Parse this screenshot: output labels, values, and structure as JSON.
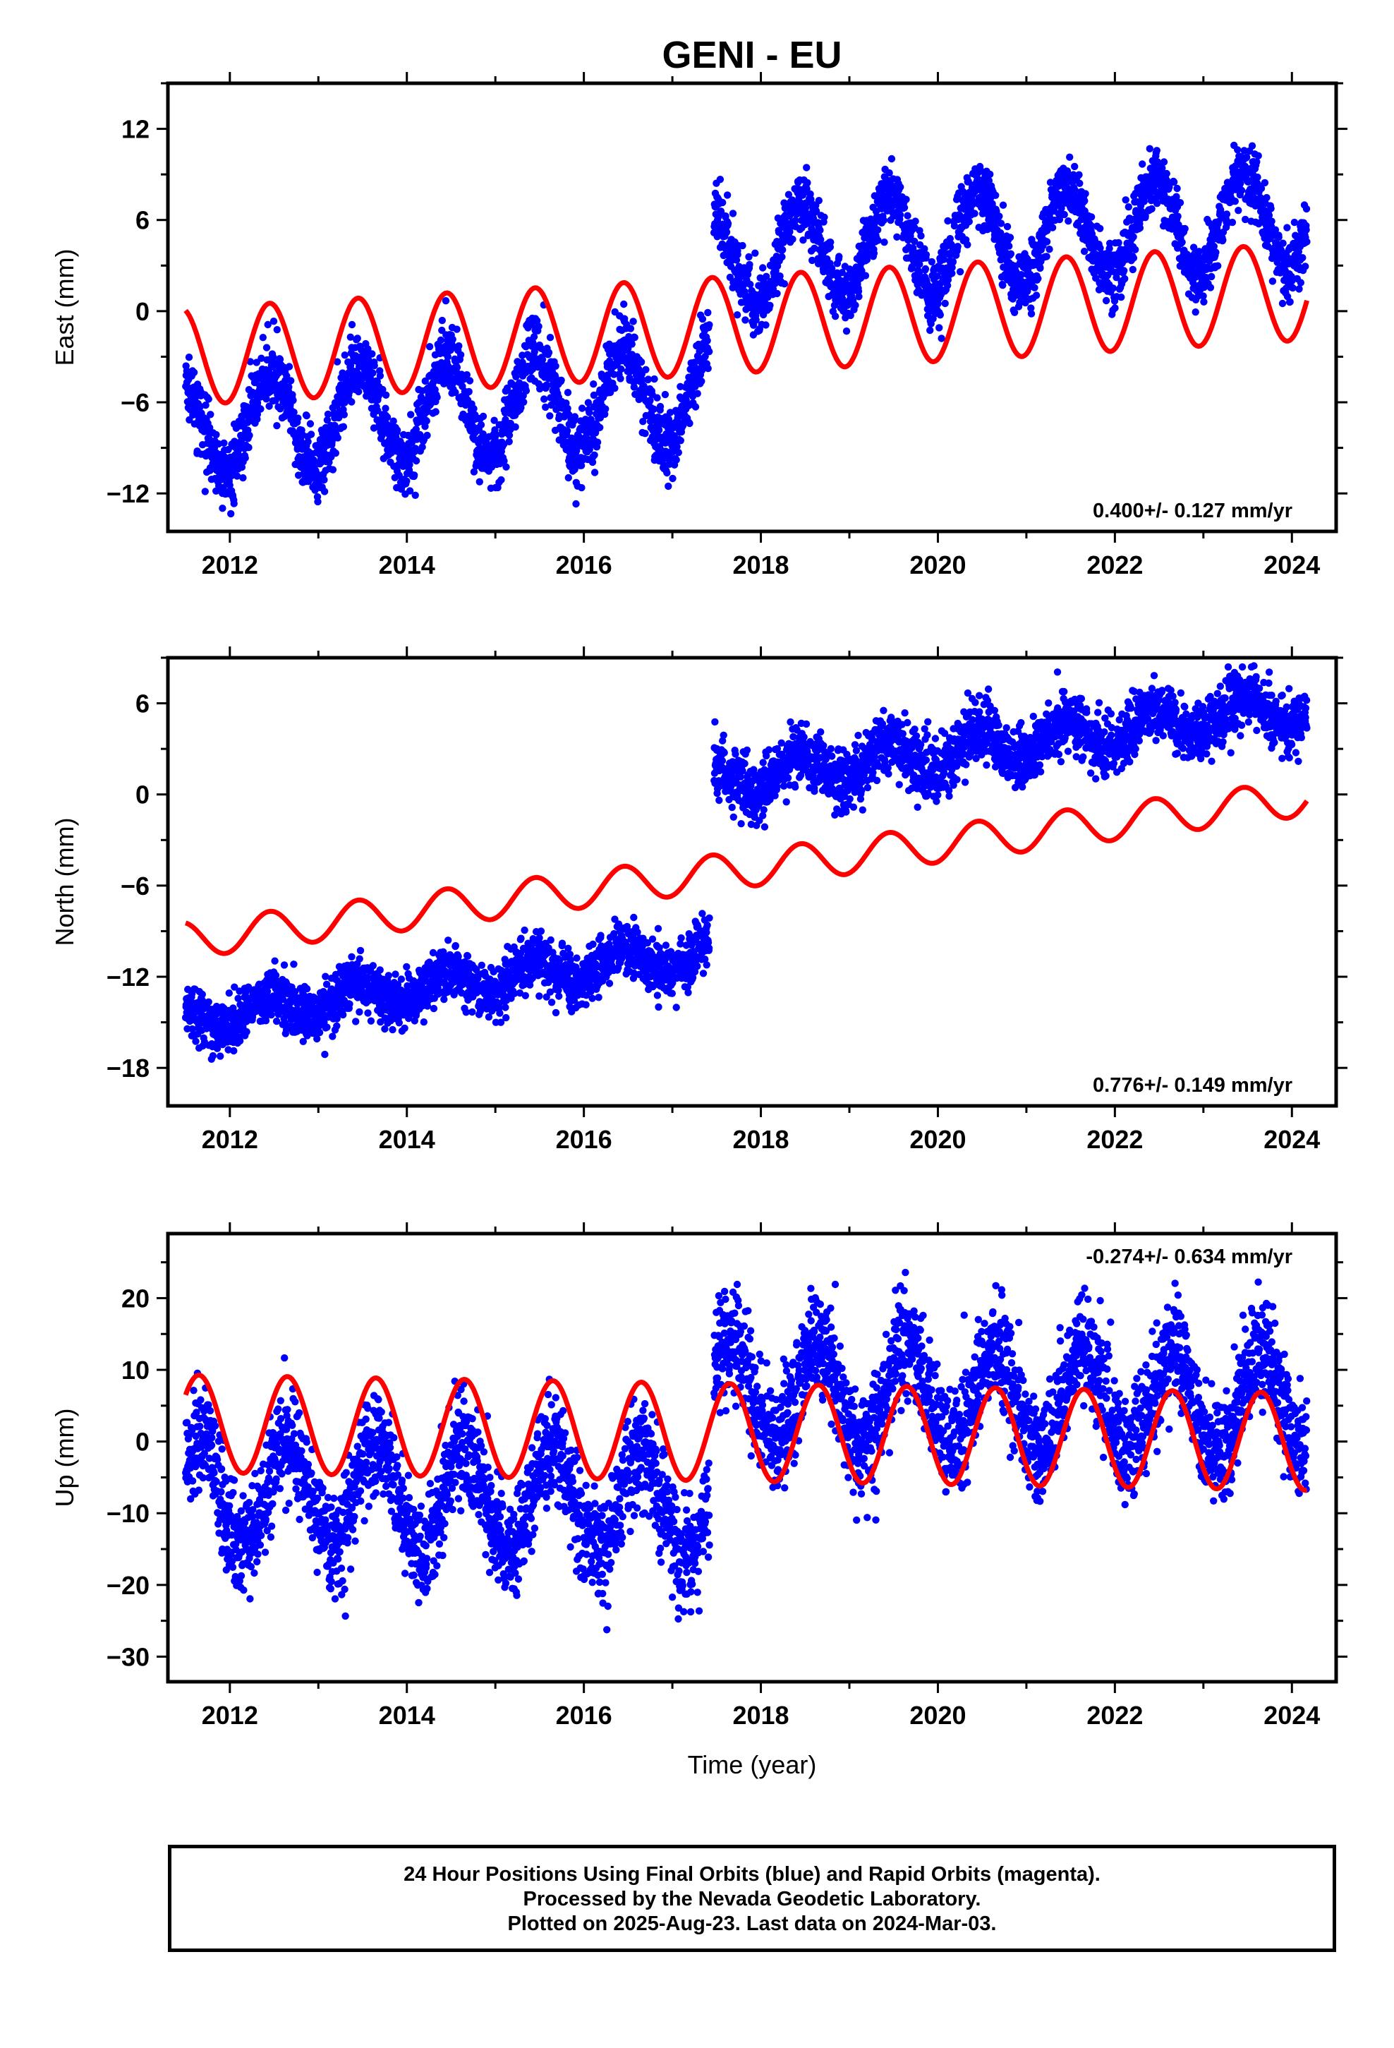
{
  "title": "GENI - EU",
  "xlabel": "Time (year)",
  "footer": {
    "line1": "24 Hour Positions Using Final Orbits (blue) and Rapid Orbits (magenta).",
    "line2": "Processed by the Nevada Geodetic Laboratory.",
    "line3": "Plotted on 2025-Aug-23. Last data on 2024-Mar-03."
  },
  "colors": {
    "final_orbits": "#0000ff",
    "model": "#ff0000",
    "axes": "#000000"
  },
  "chart_data": [
    {
      "type": "scatter",
      "id": "east",
      "ylabel": "East (mm)",
      "xlim": [
        2011.3,
        2024.5
      ],
      "ylim": [
        -14.5,
        15
      ],
      "xticks": [
        2012,
        2014,
        2016,
        2018,
        2020,
        2022,
        2024
      ],
      "yticks": [
        -12,
        -6,
        0,
        6,
        12
      ],
      "rate_text": "0.400+/- 0.127 mm/yr",
      "rate_position": "bottom-right",
      "data_span": [
        2011.5,
        2024.17
      ],
      "series": [
        {
          "kind": "points",
          "color": "#0000ff",
          "segments": [
            {
              "t0": 2011.5,
              "t1": 2017.42,
              "offset": -7.6,
              "trend": 0.4,
              "amp": 3.3,
              "phase_peak": 0.45,
              "noise": 1.5
            },
            {
              "t0": 2017.47,
              "t1": 2024.17,
              "offset": 3.5,
              "trend": 0.4,
              "amp": 3.2,
              "phase_peak": 0.45,
              "noise": 1.4
            }
          ]
        },
        {
          "kind": "line",
          "color": "#ff0000",
          "model": {
            "t0": 2011.5,
            "t1": 2024.17,
            "start": -3.0,
            "end": 1.3,
            "amp": 3.2,
            "phase_peak": 0.45
          }
        }
      ]
    },
    {
      "type": "scatter",
      "id": "north",
      "ylabel": "North (mm)",
      "xlim": [
        2011.3,
        2024.5
      ],
      "ylim": [
        -20.5,
        9
      ],
      "xticks": [
        2012,
        2014,
        2016,
        2018,
        2020,
        2022,
        2024
      ],
      "yticks": [
        -18,
        -12,
        -6,
        0,
        6
      ],
      "rate_text": "0.776+/- 0.149 mm/yr",
      "rate_position": "bottom-right",
      "data_span": [
        2011.5,
        2024.17
      ],
      "series": [
        {
          "kind": "points",
          "color": "#0000ff",
          "segments": [
            {
              "t0": 2011.5,
              "t1": 2017.42,
              "offset": -14.8,
              "trend": 0.75,
              "amp": 0.9,
              "phase_peak": 0.45,
              "noise": 1.2
            },
            {
              "t0": 2017.47,
              "t1": 2024.17,
              "offset": 0.8,
              "trend": 0.75,
              "amp": 1.2,
              "phase_peak": 0.45,
              "noise": 1.3
            }
          ]
        },
        {
          "kind": "line",
          "color": "#ff0000",
          "model": {
            "t0": 2011.5,
            "t1": 2024.17,
            "start": -9.6,
            "end": -0.2,
            "amp": 1.2,
            "phase_peak": 0.45
          }
        }
      ]
    },
    {
      "type": "scatter",
      "id": "up",
      "ylabel": "Up (mm)",
      "xlim": [
        2011.3,
        2024.5
      ],
      "ylim": [
        -33.5,
        29
      ],
      "xticks": [
        2012,
        2014,
        2016,
        2018,
        2020,
        2022,
        2024
      ],
      "yticks": [
        -30,
        -20,
        -10,
        0,
        10,
        20
      ],
      "rate_text": "-0.274+/- 0.634 mm/yr",
      "rate_position": "top-right",
      "data_span": [
        2011.5,
        2024.17
      ],
      "series": [
        {
          "kind": "points",
          "color": "#0000ff",
          "segments": [
            {
              "t0": 2011.5,
              "t1": 2017.42,
              "offset": -7.0,
              "trend": -0.27,
              "amp": 7.0,
              "phase_peak": 0.65,
              "noise": 5.0
            },
            {
              "t0": 2017.47,
              "t1": 2024.17,
              "offset": 7.0,
              "trend": -0.27,
              "amp": 7.0,
              "phase_peak": 0.65,
              "noise": 5.0
            }
          ]
        },
        {
          "kind": "line",
          "color": "#ff0000",
          "model": {
            "t0": 2011.5,
            "t1": 2024.17,
            "start": 2.5,
            "end": 0.0,
            "amp": 6.8,
            "phase_peak": 0.65
          }
        }
      ]
    }
  ]
}
